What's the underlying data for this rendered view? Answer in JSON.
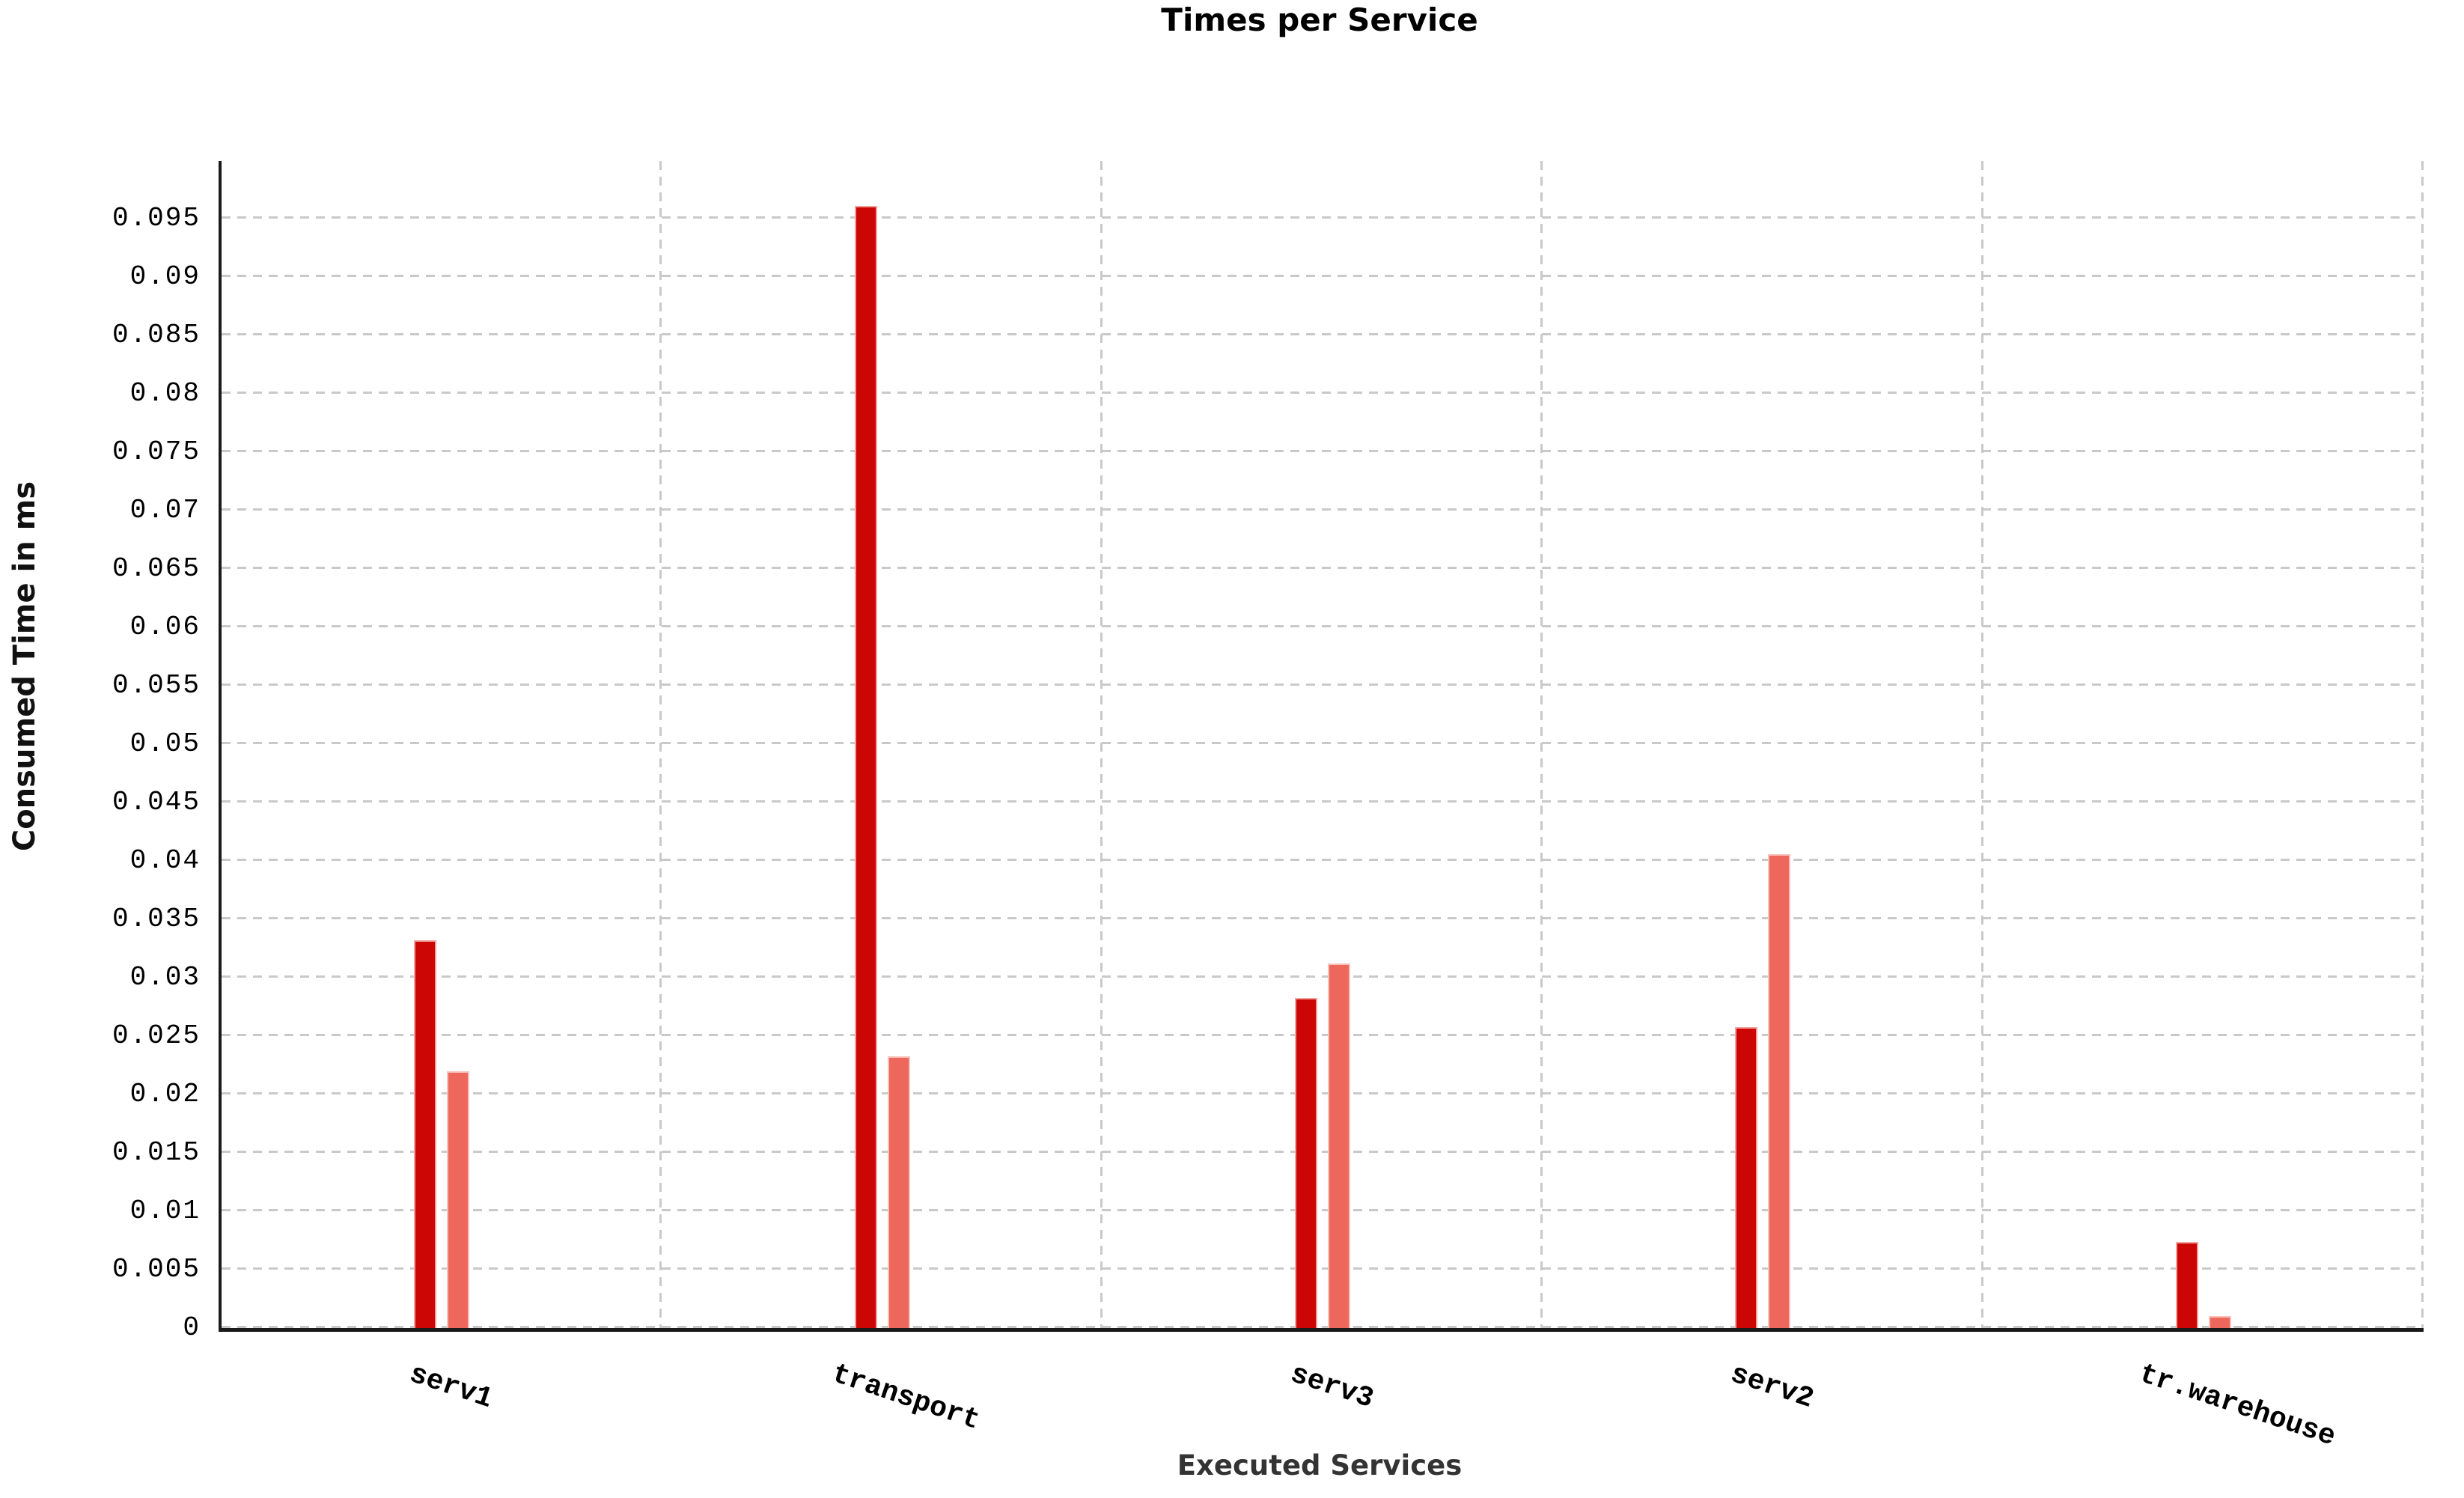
{
  "chart_data": {
    "type": "bar",
    "title": "Times per Service",
    "xlabel": "Executed Services",
    "ylabel": "Consumed Time in ms",
    "categories": [
      "serv1",
      "transport",
      "serv3",
      "serv2",
      "tr.warehouse"
    ],
    "series": [
      {
        "name": "series1",
        "color": "#cc0505",
        "edge_color": "#f2a29b",
        "values": [
          0.0332,
          0.0961,
          0.0283,
          0.0258,
          0.0074
        ]
      },
      {
        "name": "series2",
        "color": "#ee675c",
        "edge_color": "#f8c0b8",
        "values": [
          0.022,
          0.0233,
          0.0312,
          0.0406,
          0.001
        ]
      }
    ],
    "ylim": [
      0,
      0.1
    ],
    "ytick_step": 0.005,
    "ytick_labels": [
      "0",
      "0.005",
      "0.01",
      "0.015",
      "0.02",
      "0.025",
      "0.03",
      "0.035",
      "0.04",
      "0.045",
      "0.05",
      "0.055",
      "0.06",
      "0.065",
      "0.07",
      "0.075",
      "0.08",
      "0.085",
      "0.09",
      "0.095"
    ],
    "grid": "dashed-light-gray",
    "legend": "none",
    "bar_group_layout": "two bars per category, dark left, light right"
  }
}
